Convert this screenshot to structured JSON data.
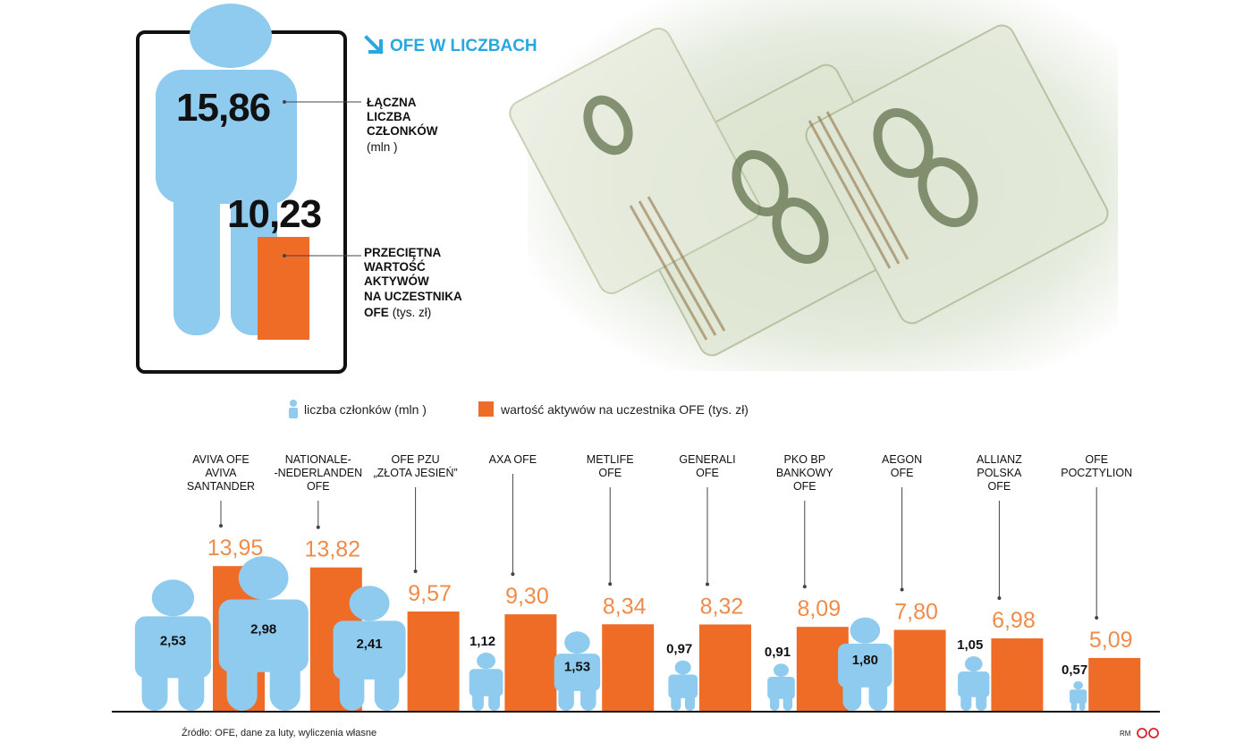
{
  "header": {
    "title": "OFE W LICZBACH",
    "total_members_value": "15,86",
    "total_members_label": [
      "ŁĄCZNA",
      "LICZBA",
      "CZŁONKÓW"
    ],
    "total_members_unit": "(mln )",
    "avg_assets_value": "10,23",
    "avg_assets_label": [
      "PRZECIĘTNA",
      "WARTOŚĆ",
      "AKTYWÓW",
      "NA UCZESTNIKA",
      "OFE"
    ],
    "avg_assets_unit": "(tys. zł)"
  },
  "legend": {
    "members": "liczba członków (mln )",
    "assets": "wartość aktywów na uczestnika OFE (tys. zł)"
  },
  "colors": {
    "members": "#8ecbef",
    "assets": "#ef6c26",
    "assets_label": "#ef8c4a",
    "title": "#2aa7de"
  },
  "chart_data": {
    "type": "bar",
    "categories": [
      [
        "AVIVA OFE",
        "AVIVA",
        "SANTANDER"
      ],
      [
        "NATIONALE-",
        "-NEDERLANDEN",
        "OFE"
      ],
      [
        "OFE PZU",
        "„ZŁOTA JESIEŃ”"
      ],
      [
        "AXA OFE"
      ],
      [
        "METLIFE",
        "OFE"
      ],
      [
        "GENERALI",
        "OFE"
      ],
      [
        "PKO BP",
        "BANKOWY",
        "OFE"
      ],
      [
        "AEGON",
        "OFE"
      ],
      [
        "ALLIANZ",
        "POLSKA",
        "OFE"
      ],
      [
        "OFE",
        "POCZTYLION"
      ]
    ],
    "series": [
      {
        "name": "liczba członków (mln )",
        "values": [
          2.53,
          2.98,
          2.41,
          1.12,
          1.53,
          0.97,
          0.91,
          1.8,
          1.05,
          0.57
        ],
        "labels": [
          "2,53",
          "2,98",
          "2,41",
          "1,12",
          "1,53",
          "0,97",
          "0,91",
          "1,80",
          "1,05",
          "0,57"
        ]
      },
      {
        "name": "wartość aktywów na uczestnika OFE (tys. zł)",
        "values": [
          13.95,
          13.82,
          9.57,
          9.3,
          8.34,
          8.32,
          8.09,
          7.8,
          6.98,
          5.09
        ],
        "labels": [
          "13,95",
          "13,82",
          "9,57",
          "9,30",
          "8,34",
          "8,32",
          "8,09",
          "7,80",
          "6,98",
          "5,09"
        ]
      }
    ],
    "legend_placement": "top"
  },
  "footer": {
    "source": "Źródło: OFE, dane za luty, wyliczenia własne",
    "initials": "RM"
  }
}
